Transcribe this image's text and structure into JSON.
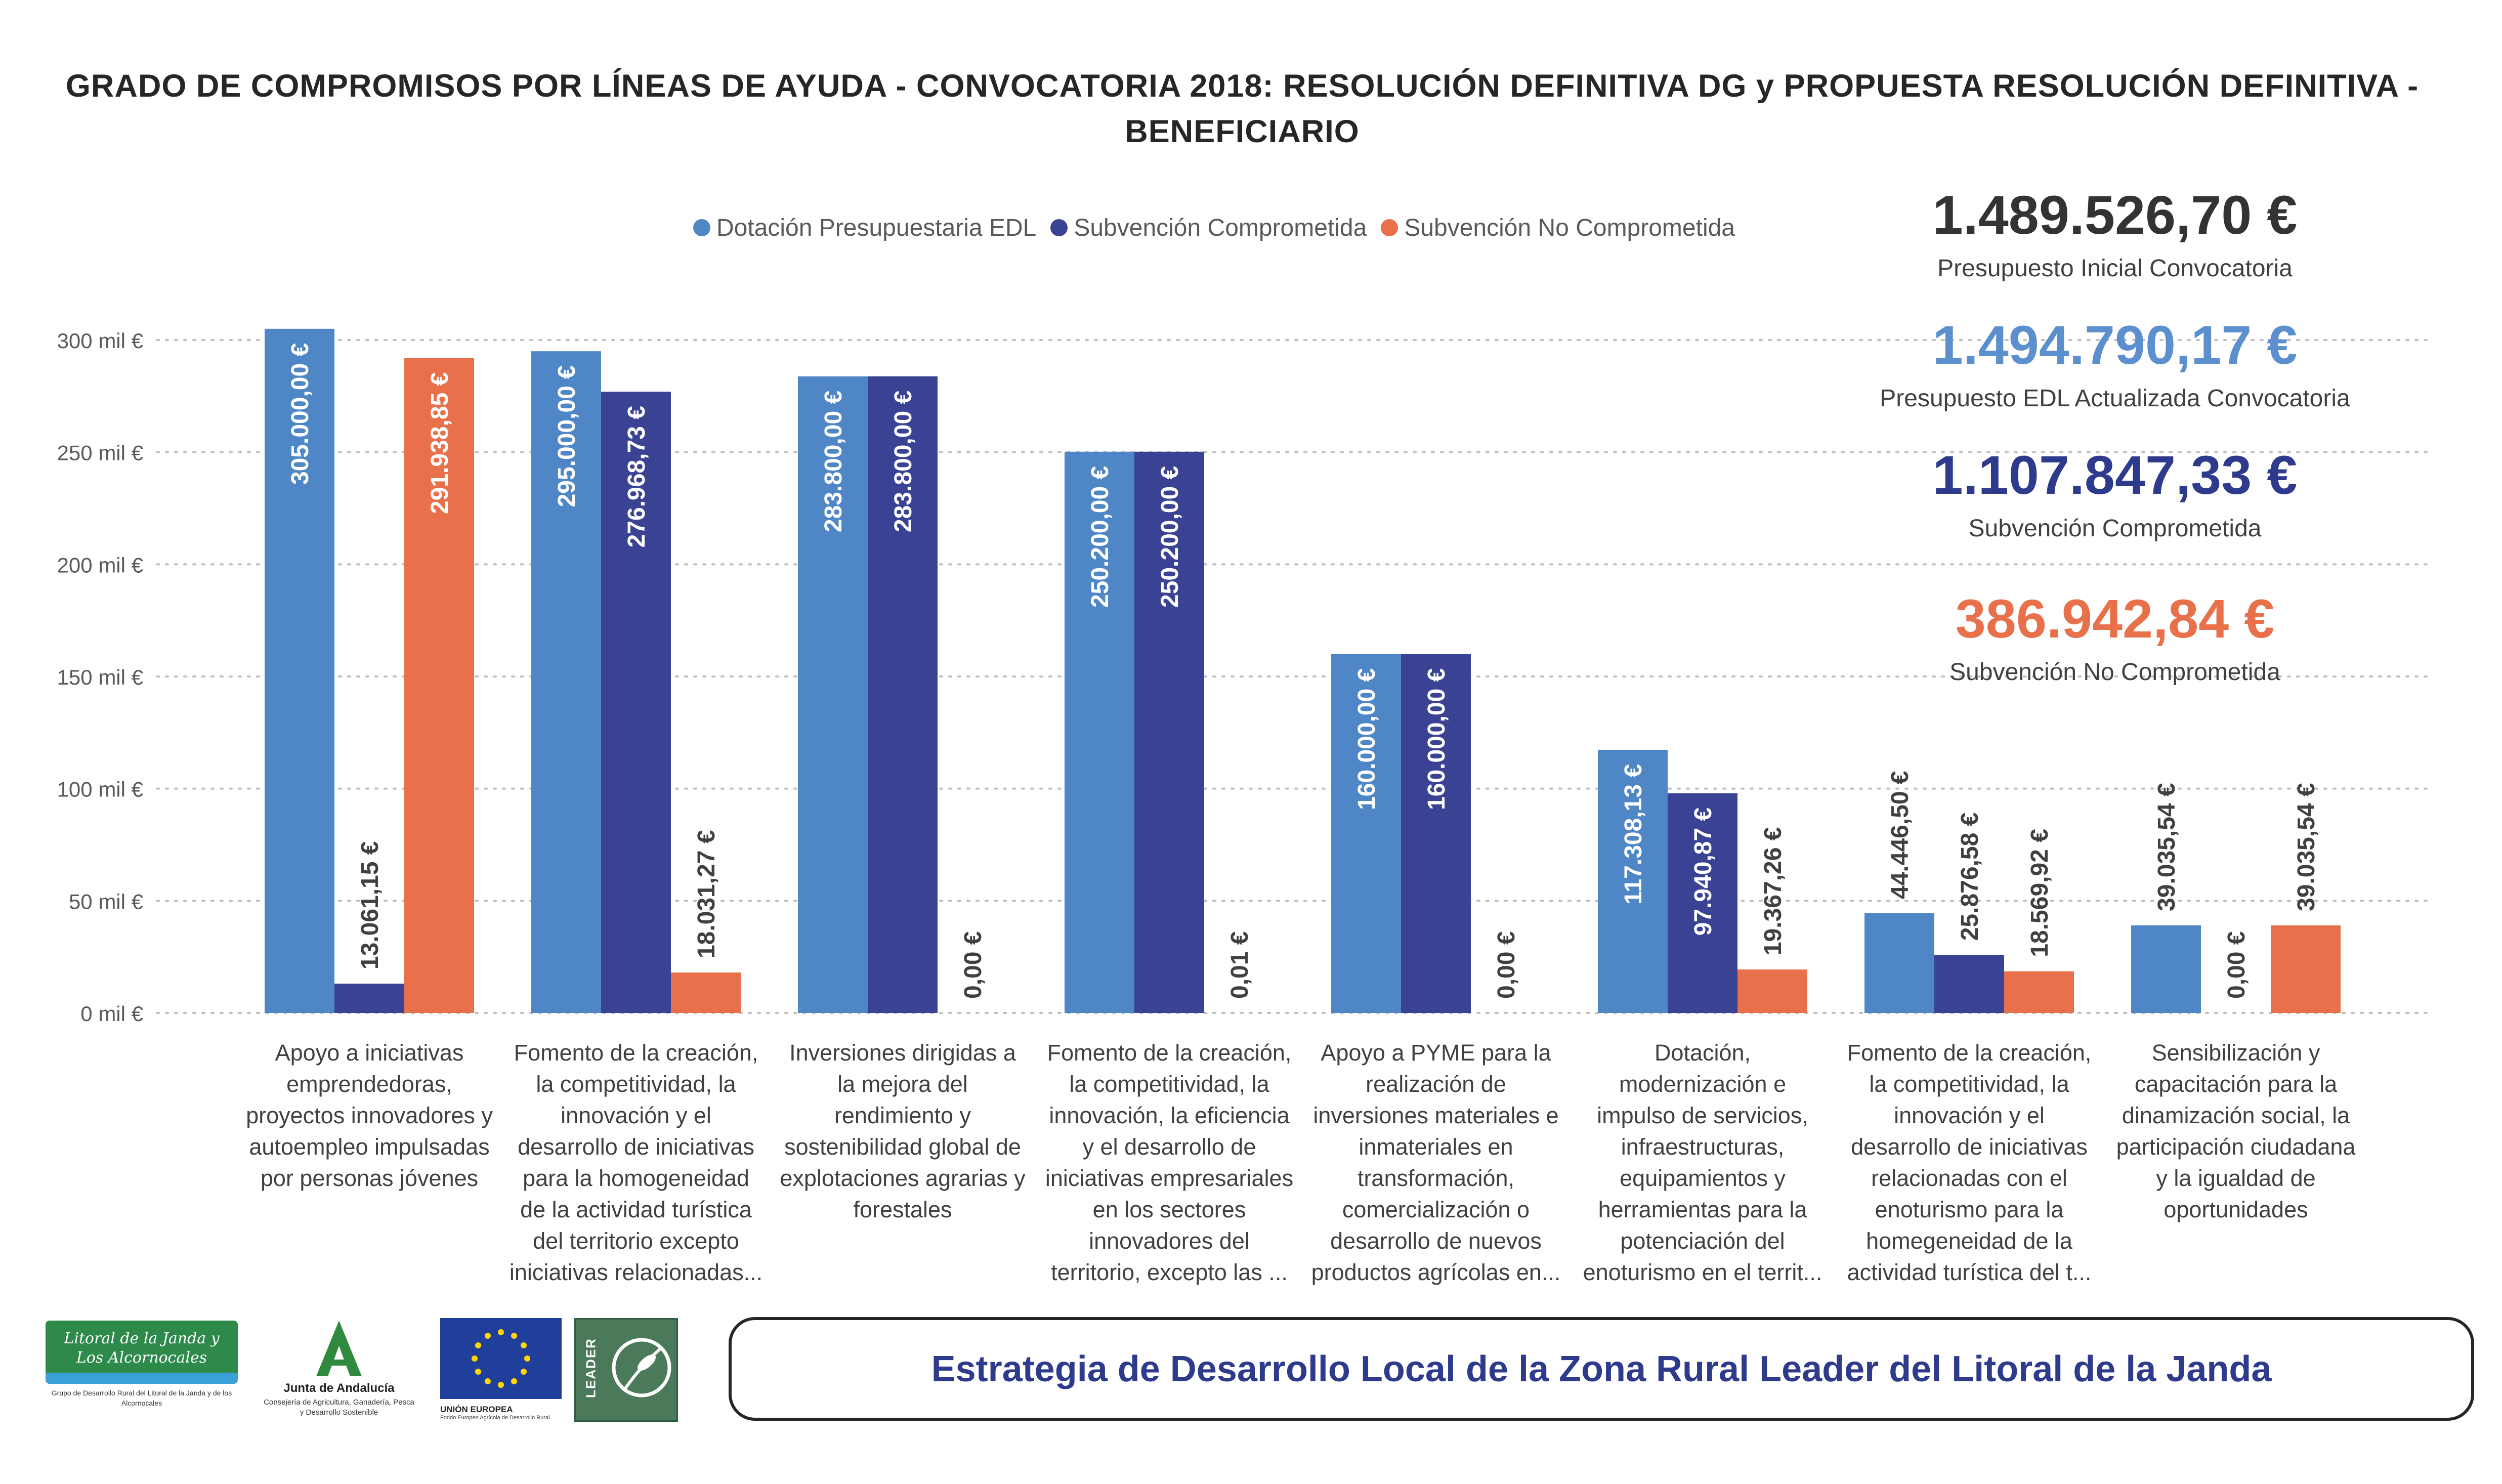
{
  "title": "GRADO DE COMPROMISOS POR LÍNEAS DE AYUDA - CONVOCATORIA 2018: RESOLUCIÓN DEFINITIVA DG y PROPUESTA RESOLUCIÓN DEFINITIVA - BENEFICIARIO",
  "colors": {
    "dotacion": "#4f86c6",
    "comprometida": "#3a4293",
    "no_comprometida": "#e8704a"
  },
  "summary": [
    {
      "value": "1.489.526,70 €",
      "label": "Presupuesto Inicial Convocatoria",
      "color": "#333333"
    },
    {
      "value": "1.494.790,17 €",
      "label": "Presupuesto EDL Actualizada Convocatoria",
      "color": "#5b8fce"
    },
    {
      "value": "1.107.847,33 €",
      "label": "Subvención Comprometida",
      "color": "#2e3a8c"
    },
    {
      "value": "386.942,84 €",
      "label": "Subvención No Comprometida",
      "color": "#e8704a"
    }
  ],
  "chart_data": {
    "type": "bar",
    "title": "GRADO DE COMPROMISOS POR LÍNEAS DE AYUDA - CONVOCATORIA 2018: RESOLUCIÓN DEFINITIVA DG y PROPUESTA RESOLUCIÓN DEFINITIVA - BENEFICIARIO",
    "ylim": [
      0,
      300000
    ],
    "y_ticks": [
      0,
      50000,
      100000,
      150000,
      200000,
      250000,
      300000
    ],
    "y_tick_labels": [
      "0 mil €",
      "50 mil €",
      "100 mil €",
      "150 mil €",
      "200 mil €",
      "250 mil €",
      "300 mil €"
    ],
    "grid": true,
    "legend_position": "top",
    "categories": [
      "Apoyo a iniciativas emprendedoras, proyectos innovadores y autoempleo impulsadas por personas jóvenes",
      "Fomento de la creación, la competitividad, la innovación y el desarrollo de iniciativas para la homogeneidad de la actividad turística del territorio excepto iniciativas relacionadas...",
      "Inversiones dirigidas a la mejora del rendimiento y sostenibilidad global de explotaciones agrarias y forestales",
      "Fomento de la creación, la competitividad, la innovación, la eficiencia y el desarrollo de iniciativas empresariales en los sectores innovadores del territorio, excepto las ...",
      "Apoyo a PYME para la realización de inversiones materiales e inmateriales en transformación, comercialización o desarrollo de nuevos productos agrícolas en...",
      "Dotación, modernización e impulso de servicios, infraestructuras, equipamientos y herramientas para la potenciación del enoturismo en el territ...",
      "Fomento de la creación, la competitividad, la innovación y el desarrollo de iniciativas relacionadas con el enoturismo para la homegeneidad de la actividad turística del t...",
      "Sensibilización y capacitación para la dinamización social, la participación ciudadana y la igualdad de oportunidades"
    ],
    "series": [
      {
        "name": "Dotación Presupuestaria EDL",
        "values": [
          305000.0,
          295000.0,
          283800.0,
          250200.0,
          160000.0,
          117308.13,
          44446.5,
          39035.54
        ],
        "labels": [
          "305.000,00 €",
          "295.000,00 €",
          "283.800,00 €",
          "250.200,00 €",
          "160.000,00 €",
          "117.308,13 €",
          "44.446,50 €",
          "39.035,54 €"
        ]
      },
      {
        "name": "Subvención Comprometida",
        "values": [
          13061.15,
          276968.73,
          283800.0,
          250200.0,
          160000.0,
          97940.87,
          25876.58,
          0
        ],
        "labels": [
          "13.061,15 €",
          "276.968,73 €",
          "283.800,00 €",
          "250.200,00 €",
          "160.000,00 €",
          "97.940,87 €",
          "25.876,58 €",
          "0,00 €"
        ]
      },
      {
        "name": "Subvención No Comprometida",
        "values": [
          291938.85,
          18031.27,
          0,
          0.01,
          0,
          19367.26,
          18569.92,
          39035.54
        ],
        "labels": [
          "291.938,85 €",
          "18.031,27 €",
          "0,00 €",
          "0,01 €",
          "0,00 €",
          "19.367,26 €",
          "18.569,92 €",
          "39.035,54 €"
        ]
      }
    ]
  },
  "category_lines": [
    [
      "Apoyo a iniciativas",
      "emprendedoras,",
      "proyectos innovadores y",
      "autoempleo impulsadas",
      "por personas jóvenes"
    ],
    [
      "Fomento de la creación,",
      "la competitividad, la",
      "innovación y el",
      "desarrollo de iniciativas",
      "para la homogeneidad",
      "de la actividad turística",
      "del territorio excepto",
      "iniciativas relacionadas..."
    ],
    [
      "Inversiones dirigidas a",
      "la mejora del",
      "rendimiento y",
      "sostenibilidad global de",
      "explotaciones agrarias y",
      "forestales"
    ],
    [
      "Fomento de la creación,",
      "la competitividad, la",
      "innovación, la eficiencia",
      "y el desarrollo de",
      "iniciativas empresariales",
      "en los sectores",
      "innovadores del",
      "territorio, excepto las ..."
    ],
    [
      "Apoyo a PYME para la",
      "realización de",
      "inversiones materiales e",
      "inmateriales en",
      "transformación,",
      "comercialización o",
      "desarrollo de nuevos",
      "productos agrícolas en..."
    ],
    [
      "Dotación,",
      "modernización e",
      "impulso de servicios,",
      "infraestructuras,",
      "equipamientos y",
      "herramientas para la",
      "potenciación del",
      "enoturismo en el territ..."
    ],
    [
      "Fomento de la creación,",
      "la competitividad, la",
      "innovación y el",
      "desarrollo de iniciativas",
      "relacionadas con el",
      "enoturismo para la",
      "homegeneidad de la",
      "actividad turística del t..."
    ],
    [
      "Sensibilización y",
      "capacitación para la",
      "dinamización social, la",
      "participación ciudadana",
      "y la igualdad de",
      "oportunidades"
    ]
  ],
  "footer": {
    "text": "Estrategia de Desarrollo Local de la Zona Rural Leader del Litoral de la Janda",
    "logos": {
      "litoral_line1": "Litoral de la Janda y",
      "litoral_line2": "Los Alcornocales",
      "litoral_caption": "Grupo de Desarrollo Rural del Litoral de la Janda y de los Alcornocales",
      "junta_name": "Junta de Andalucía",
      "junta_caption": "Consejería de Agricultura, Ganadería, Pesca y Desarrollo Sostenible",
      "ue_name": "UNIÓN EUROPEA",
      "ue_caption": "Fondo Europeo Agrícola de Desarrollo Rural",
      "leader": "LEADER"
    }
  }
}
